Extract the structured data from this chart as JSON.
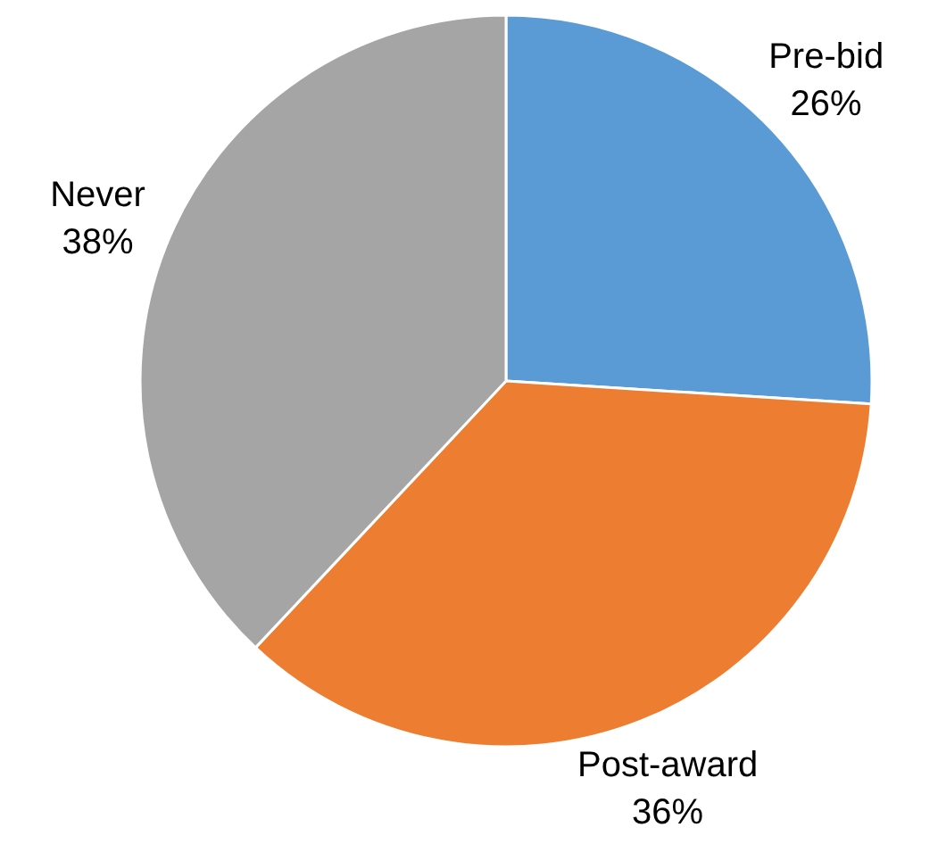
{
  "chart_data": {
    "type": "pie",
    "categories": [
      "Pre-bid",
      "Post-award",
      "Never"
    ],
    "values": [
      26,
      36,
      38
    ],
    "value_labels": [
      "26%",
      "36%",
      "38%"
    ],
    "colors": [
      "#5b9bd5",
      "#ed7d31",
      "#a5a5a5"
    ]
  }
}
